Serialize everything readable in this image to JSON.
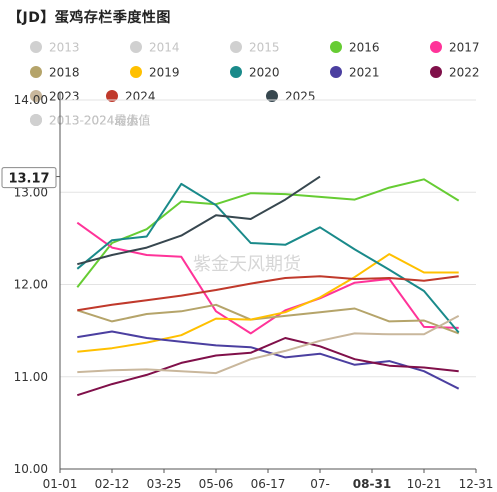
{
  "title": "【JD】蛋鸡存栏季度性图",
  "watermark": "紫金天风期货",
  "chart_data": {
    "type": "line",
    "ylim": [
      10.0,
      14.0
    ],
    "yticks": [
      "10.00",
      "11.00",
      "12.00",
      "13.00",
      "14.00"
    ],
    "xticks": [
      "01-01",
      "02-12",
      "03-25",
      "05-06",
      "06-17",
      "07-",
      "08-31",
      "10-21",
      "12-31"
    ],
    "highlight": {
      "x_label": "08-31",
      "y_label": "13.17"
    },
    "grid": true,
    "legend_position": "top",
    "series": [
      {
        "name": "2013",
        "color": "#c8c8c8",
        "hidden": true,
        "values": []
      },
      {
        "name": "2014",
        "color": "#c8c8c8",
        "hidden": true,
        "values": []
      },
      {
        "name": "2015",
        "color": "#c8c8c8",
        "hidden": true,
        "values": []
      },
      {
        "name": "2016",
        "color": "#66cc33",
        "hidden": false,
        "values": [
          [
            1,
            11.97
          ],
          [
            2,
            12.45
          ],
          [
            3,
            12.6
          ],
          [
            4,
            12.9
          ],
          [
            5,
            12.87
          ],
          [
            6,
            12.99
          ],
          [
            7,
            12.98
          ],
          [
            8,
            12.95
          ],
          [
            9,
            12.92
          ],
          [
            10,
            13.05
          ],
          [
            11,
            13.14
          ],
          [
            12,
            12.91
          ]
        ]
      },
      {
        "name": "2017",
        "color": "#ff3399",
        "hidden": false,
        "values": [
          [
            1,
            12.67
          ],
          [
            2,
            12.4
          ],
          [
            3,
            12.32
          ],
          [
            4,
            12.3
          ],
          [
            5,
            11.71
          ],
          [
            6,
            11.47
          ],
          [
            7,
            11.72
          ],
          [
            8,
            11.85
          ],
          [
            9,
            12.02
          ],
          [
            10,
            12.06
          ],
          [
            11,
            11.54
          ],
          [
            12,
            11.53
          ]
        ]
      },
      {
        "name": "2018",
        "color": "#b5a46a",
        "hidden": false,
        "values": [
          [
            1,
            11.72
          ],
          [
            2,
            11.6
          ],
          [
            3,
            11.68
          ],
          [
            4,
            11.71
          ],
          [
            5,
            11.78
          ],
          [
            6,
            11.62
          ],
          [
            7,
            11.66
          ],
          [
            8,
            11.7
          ],
          [
            9,
            11.74
          ],
          [
            10,
            11.6
          ],
          [
            11,
            11.61
          ],
          [
            12,
            11.47
          ]
        ]
      },
      {
        "name": "2019",
        "color": "#ffc000",
        "hidden": false,
        "values": [
          [
            1,
            11.27
          ],
          [
            2,
            11.31
          ],
          [
            3,
            11.37
          ],
          [
            4,
            11.45
          ],
          [
            5,
            11.63
          ],
          [
            6,
            11.62
          ],
          [
            7,
            11.7
          ],
          [
            8,
            11.86
          ],
          [
            9,
            12.08
          ],
          [
            10,
            12.33
          ],
          [
            11,
            12.13
          ],
          [
            12,
            12.13
          ]
        ]
      },
      {
        "name": "2020",
        "color": "#1a8a8a",
        "hidden": false,
        "values": [
          [
            1,
            12.17
          ],
          [
            2,
            12.48
          ],
          [
            3,
            12.52
          ],
          [
            4,
            13.09
          ],
          [
            5,
            12.86
          ],
          [
            6,
            12.45
          ],
          [
            7,
            12.43
          ],
          [
            8,
            12.62
          ],
          [
            9,
            12.38
          ],
          [
            10,
            12.16
          ],
          [
            11,
            11.93
          ],
          [
            12,
            11.48
          ]
        ]
      },
      {
        "name": "2021",
        "color": "#4b3fa0",
        "hidden": false,
        "values": [
          [
            1,
            11.43
          ],
          [
            2,
            11.49
          ],
          [
            3,
            11.42
          ],
          [
            4,
            11.38
          ],
          [
            5,
            11.34
          ],
          [
            6,
            11.32
          ],
          [
            7,
            11.21
          ],
          [
            8,
            11.25
          ],
          [
            9,
            11.13
          ],
          [
            10,
            11.17
          ],
          [
            11,
            11.06
          ],
          [
            12,
            10.87
          ]
        ]
      },
      {
        "name": "2022",
        "color": "#80104a",
        "hidden": false,
        "values": [
          [
            1,
            10.8
          ],
          [
            2,
            10.92
          ],
          [
            3,
            11.02
          ],
          [
            4,
            11.15
          ],
          [
            5,
            11.23
          ],
          [
            6,
            11.26
          ],
          [
            7,
            11.42
          ],
          [
            8,
            11.33
          ],
          [
            9,
            11.19
          ],
          [
            10,
            11.12
          ],
          [
            11,
            11.1
          ],
          [
            12,
            11.06
          ]
        ]
      },
      {
        "name": "2023",
        "color": "#c9b79c",
        "hidden": false,
        "values": [
          [
            1,
            11.05
          ],
          [
            2,
            11.07
          ],
          [
            3,
            11.08
          ],
          [
            4,
            11.06
          ],
          [
            5,
            11.04
          ],
          [
            6,
            11.19
          ],
          [
            7,
            11.28
          ],
          [
            8,
            11.39
          ],
          [
            9,
            11.47
          ],
          [
            10,
            11.46
          ],
          [
            11,
            11.46
          ],
          [
            12,
            11.66
          ]
        ]
      },
      {
        "name": "2024",
        "color": "#c0392b",
        "hidden": false,
        "values": [
          [
            1,
            11.72
          ],
          [
            2,
            11.78
          ],
          [
            3,
            11.83
          ],
          [
            4,
            11.88
          ],
          [
            5,
            11.94
          ],
          [
            6,
            12.01
          ],
          [
            7,
            12.07
          ],
          [
            8,
            12.09
          ],
          [
            9,
            12.06
          ],
          [
            10,
            12.07
          ],
          [
            11,
            12.04
          ],
          [
            12,
            12.09
          ]
        ]
      },
      {
        "name": "2025",
        "color": "#37474f",
        "hidden": false,
        "values": [
          [
            1,
            12.22
          ],
          [
            2,
            12.32
          ],
          [
            3,
            12.4
          ],
          [
            4,
            12.53
          ],
          [
            5,
            12.75
          ],
          [
            6,
            12.71
          ],
          [
            7,
            12.92
          ],
          [
            8,
            13.17
          ]
        ]
      },
      {
        "name": "2013-2024最大值",
        "color": "#c8c8c8",
        "hidden": true,
        "values": []
      },
      {
        "name": "2013-2024最小值",
        "color": "#c8c8c8",
        "hidden": true,
        "values": []
      },
      {
        "name": "2013-2024均值",
        "color": "#c8c8c8",
        "hidden": true,
        "values": []
      }
    ]
  }
}
